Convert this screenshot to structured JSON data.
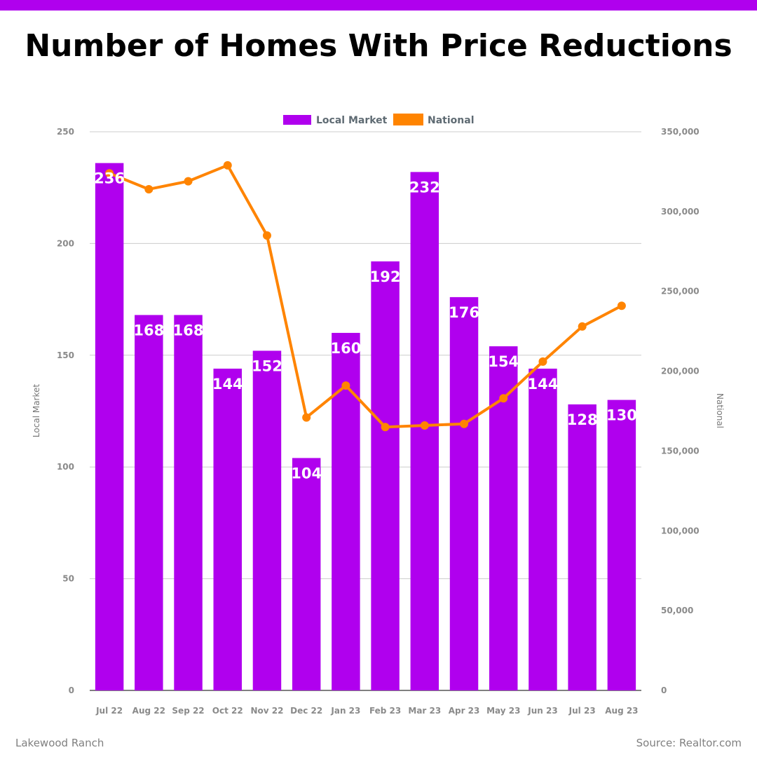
{
  "header": {
    "title": "Number of Homes With Price Reductions"
  },
  "footer": {
    "location": "Lakewood Ranch",
    "source": "Source: Realtor.com"
  },
  "colors": {
    "accent": "#b000ee",
    "local": "#b000ee",
    "national": "#ff8400",
    "grid": "#cccccc"
  },
  "chart_data": {
    "type": "bar",
    "title": "Number of Homes With Price Reductions",
    "categories": [
      "Jul 22",
      "Aug 22",
      "Sep 22",
      "Oct 22",
      "Nov 22",
      "Dec 22",
      "Jan 23",
      "Feb 23",
      "Mar 23",
      "Apr 23",
      "May 23",
      "Jun 23",
      "Jul 23",
      "Aug 23"
    ],
    "series": [
      {
        "name": "Local Market",
        "type": "bar",
        "axis": "left",
        "values": [
          236,
          168,
          168,
          144,
          152,
          104,
          160,
          192,
          232,
          176,
          154,
          144,
          128,
          130
        ]
      },
      {
        "name": "National",
        "type": "line",
        "axis": "right",
        "values": [
          324000,
          314000,
          319000,
          329000,
          285000,
          171000,
          191000,
          165000,
          166000,
          167000,
          183000,
          206000,
          228000,
          241000
        ]
      }
    ],
    "ylabel": "Local Market",
    "y2label": "National",
    "ylim": [
      0,
      250
    ],
    "y2lim": [
      0,
      350000
    ],
    "yticks": [
      "0",
      "50",
      "100",
      "150",
      "200",
      "250"
    ],
    "y2ticks": [
      "0",
      "50,000",
      "100,000",
      "150,000",
      "200,000",
      "250,000",
      "300,000",
      "350,000"
    ],
    "grid": true,
    "legend": "top-center"
  }
}
